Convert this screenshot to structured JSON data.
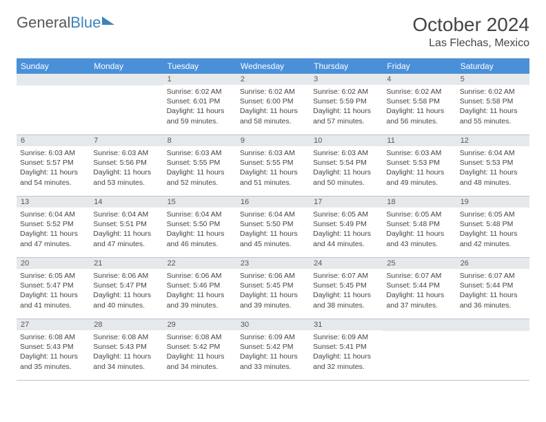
{
  "brand": {
    "part1": "General",
    "part2": "Blue"
  },
  "title": "October 2024",
  "location": "Las Flechas, Mexico",
  "colors": {
    "header_bg": "#4a90d9",
    "daynum_bg": "#e6e9ec",
    "border": "#b8c4d0",
    "text": "#444444",
    "brand_gray": "#555555",
    "brand_blue": "#3b83bd"
  },
  "days_of_week": [
    "Sunday",
    "Monday",
    "Tuesday",
    "Wednesday",
    "Thursday",
    "Friday",
    "Saturday"
  ],
  "weeks": [
    [
      null,
      null,
      {
        "n": "1",
        "sr": "6:02 AM",
        "ss": "6:01 PM",
        "dl": "11 hours and 59 minutes."
      },
      {
        "n": "2",
        "sr": "6:02 AM",
        "ss": "6:00 PM",
        "dl": "11 hours and 58 minutes."
      },
      {
        "n": "3",
        "sr": "6:02 AM",
        "ss": "5:59 PM",
        "dl": "11 hours and 57 minutes."
      },
      {
        "n": "4",
        "sr": "6:02 AM",
        "ss": "5:58 PM",
        "dl": "11 hours and 56 minutes."
      },
      {
        "n": "5",
        "sr": "6:02 AM",
        "ss": "5:58 PM",
        "dl": "11 hours and 55 minutes."
      }
    ],
    [
      {
        "n": "6",
        "sr": "6:03 AM",
        "ss": "5:57 PM",
        "dl": "11 hours and 54 minutes."
      },
      {
        "n": "7",
        "sr": "6:03 AM",
        "ss": "5:56 PM",
        "dl": "11 hours and 53 minutes."
      },
      {
        "n": "8",
        "sr": "6:03 AM",
        "ss": "5:55 PM",
        "dl": "11 hours and 52 minutes."
      },
      {
        "n": "9",
        "sr": "6:03 AM",
        "ss": "5:55 PM",
        "dl": "11 hours and 51 minutes."
      },
      {
        "n": "10",
        "sr": "6:03 AM",
        "ss": "5:54 PM",
        "dl": "11 hours and 50 minutes."
      },
      {
        "n": "11",
        "sr": "6:03 AM",
        "ss": "5:53 PM",
        "dl": "11 hours and 49 minutes."
      },
      {
        "n": "12",
        "sr": "6:04 AM",
        "ss": "5:53 PM",
        "dl": "11 hours and 48 minutes."
      }
    ],
    [
      {
        "n": "13",
        "sr": "6:04 AM",
        "ss": "5:52 PM",
        "dl": "11 hours and 47 minutes."
      },
      {
        "n": "14",
        "sr": "6:04 AM",
        "ss": "5:51 PM",
        "dl": "11 hours and 47 minutes."
      },
      {
        "n": "15",
        "sr": "6:04 AM",
        "ss": "5:50 PM",
        "dl": "11 hours and 46 minutes."
      },
      {
        "n": "16",
        "sr": "6:04 AM",
        "ss": "5:50 PM",
        "dl": "11 hours and 45 minutes."
      },
      {
        "n": "17",
        "sr": "6:05 AM",
        "ss": "5:49 PM",
        "dl": "11 hours and 44 minutes."
      },
      {
        "n": "18",
        "sr": "6:05 AM",
        "ss": "5:48 PM",
        "dl": "11 hours and 43 minutes."
      },
      {
        "n": "19",
        "sr": "6:05 AM",
        "ss": "5:48 PM",
        "dl": "11 hours and 42 minutes."
      }
    ],
    [
      {
        "n": "20",
        "sr": "6:05 AM",
        "ss": "5:47 PM",
        "dl": "11 hours and 41 minutes."
      },
      {
        "n": "21",
        "sr": "6:06 AM",
        "ss": "5:47 PM",
        "dl": "11 hours and 40 minutes."
      },
      {
        "n": "22",
        "sr": "6:06 AM",
        "ss": "5:46 PM",
        "dl": "11 hours and 39 minutes."
      },
      {
        "n": "23",
        "sr": "6:06 AM",
        "ss": "5:45 PM",
        "dl": "11 hours and 39 minutes."
      },
      {
        "n": "24",
        "sr": "6:07 AM",
        "ss": "5:45 PM",
        "dl": "11 hours and 38 minutes."
      },
      {
        "n": "25",
        "sr": "6:07 AM",
        "ss": "5:44 PM",
        "dl": "11 hours and 37 minutes."
      },
      {
        "n": "26",
        "sr": "6:07 AM",
        "ss": "5:44 PM",
        "dl": "11 hours and 36 minutes."
      }
    ],
    [
      {
        "n": "27",
        "sr": "6:08 AM",
        "ss": "5:43 PM",
        "dl": "11 hours and 35 minutes."
      },
      {
        "n": "28",
        "sr": "6:08 AM",
        "ss": "5:43 PM",
        "dl": "11 hours and 34 minutes."
      },
      {
        "n": "29",
        "sr": "6:08 AM",
        "ss": "5:42 PM",
        "dl": "11 hours and 34 minutes."
      },
      {
        "n": "30",
        "sr": "6:09 AM",
        "ss": "5:42 PM",
        "dl": "11 hours and 33 minutes."
      },
      {
        "n": "31",
        "sr": "6:09 AM",
        "ss": "5:41 PM",
        "dl": "11 hours and 32 minutes."
      },
      null,
      null
    ]
  ],
  "labels": {
    "sunrise": "Sunrise:",
    "sunset": "Sunset:",
    "daylight": "Daylight:"
  }
}
